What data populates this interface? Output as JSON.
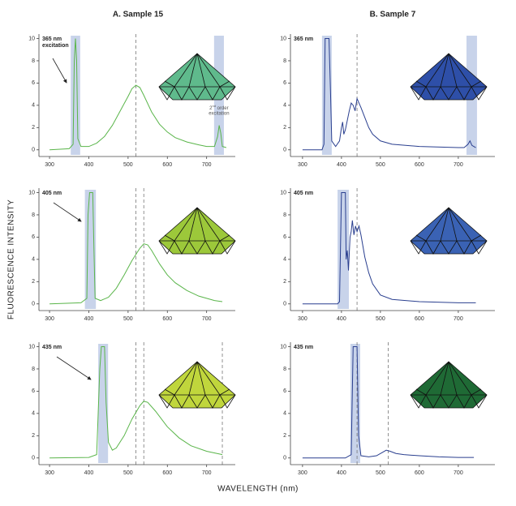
{
  "figure": {
    "column_titles": [
      "A. Sample 15",
      "B. Sample 7"
    ],
    "y_label": "FLUORESCENCE INTENSITY",
    "x_label": "WAVELENGTH (nm)"
  },
  "chart_data": [
    {
      "type": "line",
      "x": [
        300,
        350,
        360,
        363,
        366,
        369,
        372,
        380,
        400,
        420,
        440,
        460,
        480,
        500,
        510,
        520,
        530,
        540,
        560,
        580,
        600,
        620,
        650,
        680,
        700,
        720,
        728,
        732,
        736,
        740,
        750
      ],
      "series": [
        {
          "color": "#5ab54a",
          "values": [
            0,
            0.1,
            0.5,
            8,
            10,
            8,
            1,
            0.3,
            0.3,
            0.6,
            1.2,
            2.2,
            3.5,
            4.8,
            5.5,
            5.8,
            5.6,
            4.9,
            3.4,
            2.3,
            1.6,
            1.1,
            0.7,
            0.45,
            0.3,
            0.3,
            1.2,
            2.2,
            1.5,
            0.3,
            0.2
          ]
        }
      ],
      "bands": [
        [
          354,
          378
        ],
        [
          719,
          744
        ]
      ],
      "band_color": "#c8d3ea",
      "vlines": [
        520
      ],
      "gem_color": "#5fba8c",
      "annotations": [
        {
          "lines": [
            "365 nm",
            "excitation"
          ]
        },
        {
          "base": "2",
          "sup": "nd",
          "rest": " order",
          "line2": "excitation"
        }
      ],
      "xlim": [
        273,
        773
      ],
      "xticks": [
        300,
        400,
        500,
        600,
        700
      ],
      "ylim": [
        -0.6,
        10.4
      ],
      "yticks": [
        0,
        2,
        4,
        6,
        8,
        10
      ]
    },
    {
      "type": "line",
      "x": [
        300,
        350,
        355,
        358,
        368,
        372,
        375,
        385,
        395,
        400,
        403,
        406,
        410,
        420,
        425,
        430,
        435,
        440,
        445,
        450,
        460,
        470,
        480,
        500,
        530,
        600,
        700,
        715,
        725,
        730,
        735,
        745
      ],
      "series": [
        {
          "color": "#2a3f8f",
          "values": [
            0,
            0,
            0.5,
            10,
            10,
            5,
            0.8,
            0.3,
            0.8,
            2,
            2.5,
            1.4,
            1.8,
            3.5,
            4.2,
            4,
            3.5,
            4.6,
            4.2,
            3.8,
            2.9,
            2,
            1.4,
            0.8,
            0.5,
            0.3,
            0.2,
            0.2,
            0.5,
            0.8,
            0.4,
            0.2
          ]
        }
      ],
      "bands": [
        [
          350,
          375
        ],
        [
          721,
          748
        ]
      ],
      "band_color": "#c8d3ea",
      "vlines": [
        440
      ],
      "gem_color": "#2e4fa8",
      "annotations": [
        {
          "lines": [
            "365 nm"
          ]
        }
      ],
      "xlim": [
        269,
        794
      ],
      "xticks": [
        300,
        400,
        500,
        600,
        700
      ],
      "ylim": [
        -0.6,
        10.4
      ],
      "yticks": [
        0,
        2,
        4,
        6,
        8,
        10
      ]
    },
    {
      "type": "line",
      "x": [
        300,
        380,
        395,
        398,
        402,
        410,
        413,
        416,
        430,
        450,
        470,
        490,
        510,
        530,
        540,
        550,
        560,
        580,
        600,
        620,
        650,
        680,
        700,
        720,
        740
      ],
      "series": [
        {
          "color": "#5ab54a",
          "values": [
            0,
            0.1,
            0.5,
            8,
            10,
            10,
            5,
            0.5,
            0.3,
            0.6,
            1.4,
            2.6,
            3.9,
            5,
            5.4,
            5.3,
            4.8,
            3.6,
            2.6,
            1.9,
            1.2,
            0.7,
            0.5,
            0.3,
            0.2
          ]
        }
      ],
      "bands": [
        [
          390,
          418
        ]
      ],
      "band_color": "#c8d3ea",
      "vlines": [
        520,
        540
      ],
      "gem_color": "#9cc83a",
      "annotations": [
        {
          "lines": [
            "405 nm"
          ]
        }
      ],
      "xlim": [
        273,
        773
      ],
      "xticks": [
        300,
        400,
        500,
        600,
        700
      ],
      "ylim": [
        -0.6,
        10.4
      ],
      "yticks": [
        0,
        2,
        4,
        6,
        8,
        10
      ]
    },
    {
      "type": "line",
      "x": [
        300,
        390,
        395,
        400,
        410,
        412,
        415,
        418,
        422,
        425,
        428,
        432,
        436,
        440,
        445,
        450,
        460,
        470,
        480,
        500,
        530,
        600,
        700,
        745
      ],
      "series": [
        {
          "color": "#2a3f8f",
          "values": [
            0,
            0,
            0.2,
            10,
            10,
            4,
            4.8,
            3,
            6,
            6.5,
            7.5,
            6.2,
            7,
            6.5,
            7,
            6.2,
            4.2,
            2.8,
            1.8,
            0.8,
            0.4,
            0.2,
            0.1,
            0.1
          ]
        }
      ],
      "bands": [
        [
          390,
          419
        ]
      ],
      "band_color": "#c8d3ea",
      "vlines": [
        440
      ],
      "gem_color": "#3a62b4",
      "annotations": [
        {
          "lines": [
            "405 nm"
          ]
        }
      ],
      "xlim": [
        269,
        794
      ],
      "xticks": [
        300,
        400,
        500,
        600,
        700
      ],
      "ylim": [
        -0.6,
        10.4
      ],
      "yticks": [
        0,
        2,
        4,
        6,
        8,
        10
      ]
    },
    {
      "type": "line",
      "x": [
        300,
        400,
        420,
        428,
        432,
        440,
        444,
        450,
        460,
        470,
        490,
        510,
        530,
        540,
        550,
        570,
        600,
        630,
        660,
        700,
        740
      ],
      "series": [
        {
          "color": "#5ab54a",
          "values": [
            0,
            0.05,
            0.3,
            8,
            10,
            10,
            5,
            1.4,
            0.7,
            0.9,
            2,
            3.5,
            4.7,
            5.1,
            5,
            4.2,
            2.8,
            1.8,
            1.1,
            0.6,
            0.3
          ]
        }
      ],
      "bands": [
        [
          424,
          449
        ]
      ],
      "band_color": "#c8d3ea",
      "vlines": [
        520,
        540,
        740
      ],
      "gem_color": "#c0d63c",
      "annotations": [
        {
          "lines": [
            "435 nm"
          ]
        }
      ],
      "xlim": [
        273,
        773
      ],
      "xticks": [
        300,
        400,
        500,
        600,
        700
      ],
      "ylim": [
        -0.6,
        10.4
      ],
      "yticks": [
        0,
        2,
        4,
        6,
        8,
        10
      ]
    },
    {
      "type": "line",
      "x": [
        300,
        410,
        425,
        430,
        440,
        444,
        450,
        470,
        490,
        505,
        515,
        525,
        540,
        560,
        600,
        650,
        700,
        740
      ],
      "series": [
        {
          "color": "#2a3f8f",
          "values": [
            0,
            0,
            0.3,
            10,
            10,
            2,
            0.2,
            0.1,
            0.2,
            0.5,
            0.7,
            0.6,
            0.4,
            0.3,
            0.2,
            0.1,
            0.05,
            0.05
          ]
        }
      ],
      "bands": [
        [
          423,
          448
        ]
      ],
      "band_color": "#c8d3ea",
      "vlines": [
        440,
        520
      ],
      "gem_color": "#1f6a35",
      "annotations": [
        {
          "lines": [
            "435 nm"
          ]
        }
      ],
      "xlim": [
        269,
        794
      ],
      "xticks": [
        300,
        400,
        500,
        600,
        700
      ],
      "ylim": [
        -0.6,
        10.4
      ],
      "yticks": [
        0,
        2,
        4,
        6,
        8,
        10
      ]
    }
  ]
}
